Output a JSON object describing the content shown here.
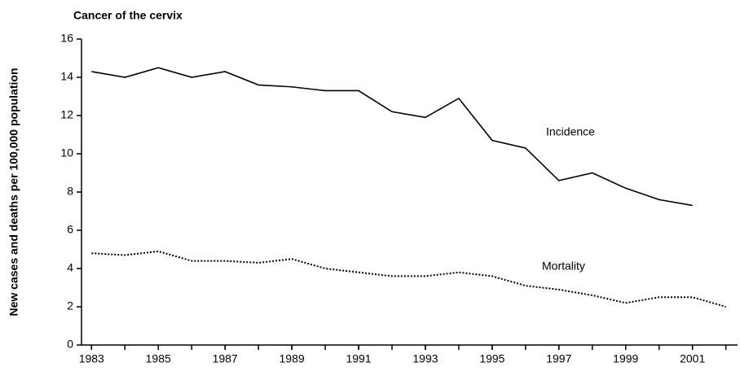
{
  "chart_data": {
    "type": "line",
    "title": "Cancer of the cervix",
    "y_label": "New cases and deaths per 100,000 population",
    "x": [
      1983,
      1984,
      1985,
      1986,
      1987,
      1988,
      1989,
      1990,
      1991,
      1992,
      1993,
      1994,
      1995,
      1996,
      1997,
      1998,
      1999,
      2000,
      2001,
      2002
    ],
    "series": [
      {
        "name": "Incidence",
        "color": "#000000",
        "dash": "solid",
        "values": [
          14.3,
          14.0,
          14.5,
          14.0,
          14.3,
          13.6,
          13.5,
          13.3,
          13.3,
          12.2,
          11.9,
          12.9,
          10.7,
          10.3,
          8.6,
          9.0,
          8.2,
          7.6,
          7.3,
          null
        ]
      },
      {
        "name": "Mortality",
        "color": "#000000",
        "dash": "dotted",
        "values": [
          4.8,
          4.7,
          4.9,
          4.4,
          4.4,
          4.3,
          4.5,
          4.0,
          3.8,
          3.6,
          3.6,
          3.8,
          3.6,
          3.1,
          2.9,
          2.6,
          2.2,
          2.5,
          2.5,
          2.0
        ]
      }
    ],
    "xlim": [
      1982.7,
      2002.35
    ],
    "xticks": [
      1983,
      1985,
      1987,
      1989,
      1991,
      1993,
      1995,
      1997,
      1999,
      2001
    ],
    "ylim": [
      0,
      16
    ],
    "yticks": [
      0,
      2,
      4,
      6,
      8,
      10,
      12,
      14,
      16
    ],
    "grid": false
  }
}
